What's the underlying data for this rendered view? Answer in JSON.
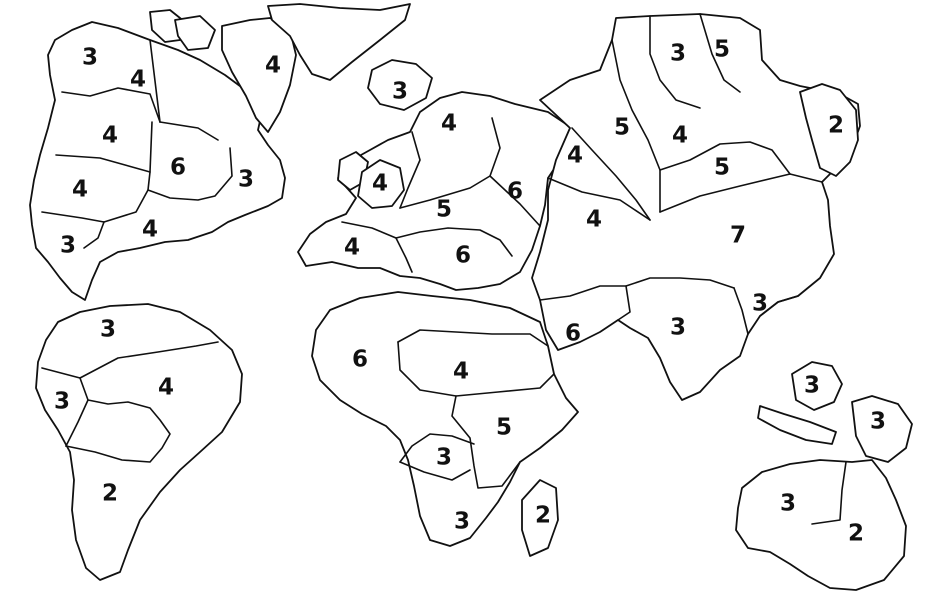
{
  "map": {
    "regions": [
      {
        "id": "alaska",
        "value": "3"
      },
      {
        "id": "northwest-territory",
        "value": "4"
      },
      {
        "id": "greenland",
        "value": "4"
      },
      {
        "id": "alberta",
        "value": "4"
      },
      {
        "id": "ontario",
        "value": "6"
      },
      {
        "id": "quebec",
        "value": "3"
      },
      {
        "id": "western-united-states",
        "value": "4"
      },
      {
        "id": "eastern-united-states",
        "value": "4"
      },
      {
        "id": "central-america",
        "value": "3"
      },
      {
        "id": "venezuela",
        "value": "3"
      },
      {
        "id": "peru",
        "value": "3"
      },
      {
        "id": "brazil",
        "value": "4"
      },
      {
        "id": "argentina",
        "value": "2"
      },
      {
        "id": "iceland",
        "value": "3"
      },
      {
        "id": "scandinavia",
        "value": "4"
      },
      {
        "id": "great-britain",
        "value": "4"
      },
      {
        "id": "northern-europe",
        "value": "5"
      },
      {
        "id": "western-europe",
        "value": "4"
      },
      {
        "id": "southern-europe",
        "value": "6"
      },
      {
        "id": "ukraine",
        "value": "6"
      },
      {
        "id": "north-africa",
        "value": "6"
      },
      {
        "id": "egypt",
        "value": "4"
      },
      {
        "id": "east-africa",
        "value": "5"
      },
      {
        "id": "congo",
        "value": "3"
      },
      {
        "id": "south-africa",
        "value": "3"
      },
      {
        "id": "madagascar",
        "value": "2"
      },
      {
        "id": "ural",
        "value": "4"
      },
      {
        "id": "afghanistan",
        "value": "4"
      },
      {
        "id": "siberia",
        "value": "5"
      },
      {
        "id": "yakutsk",
        "value": "3"
      },
      {
        "id": "kamchatka",
        "value": "5"
      },
      {
        "id": "irkutsk",
        "value": "4"
      },
      {
        "id": "mongolia",
        "value": "5"
      },
      {
        "id": "japan",
        "value": "2"
      },
      {
        "id": "china",
        "value": "7"
      },
      {
        "id": "middle-east",
        "value": "6"
      },
      {
        "id": "india",
        "value": "3"
      },
      {
        "id": "siam",
        "value": "3"
      },
      {
        "id": "indonesia",
        "value": "3"
      },
      {
        "id": "new-guinea",
        "value": "3"
      },
      {
        "id": "western-australia",
        "value": "3"
      },
      {
        "id": "eastern-australia",
        "value": "2"
      }
    ]
  }
}
